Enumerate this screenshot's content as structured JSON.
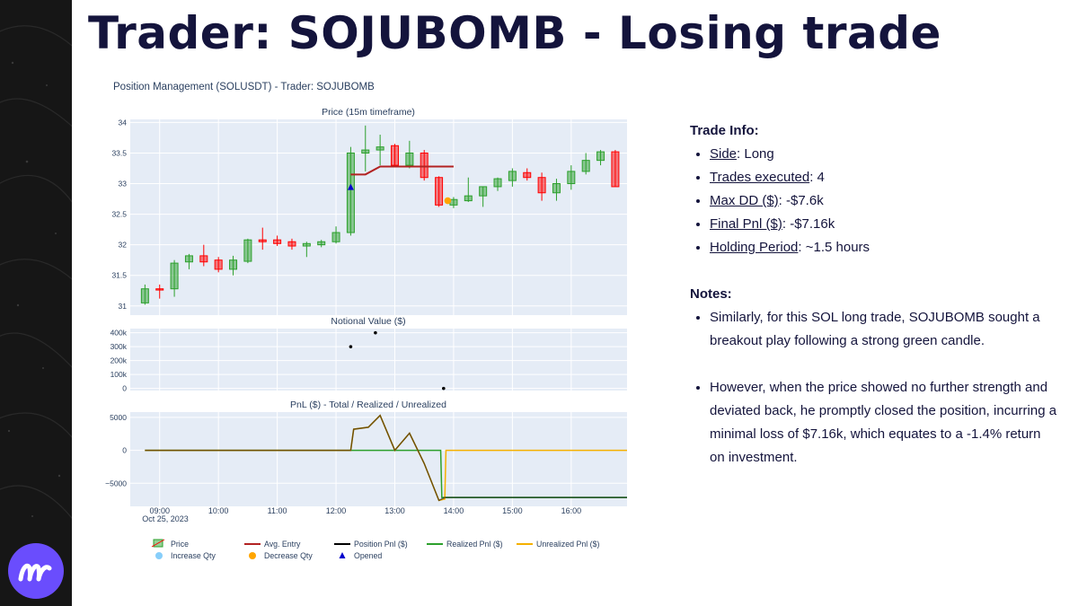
{
  "slide": {
    "title": "Trader: SOJUBOMB - Losing trade",
    "figure_title": "Position Management (SOLUSDT) - Trader: SOJUBOMB"
  },
  "colors": {
    "title": "#14143c",
    "increasing": "#2ca02c",
    "decreasing": "#ff0000",
    "avg_entry": "#b22222",
    "realized": "#2ca02c",
    "unrealized": "#f5b000",
    "plot_bg": "#e5ecf6",
    "logo": "#6a4dfd"
  },
  "trade_info": {
    "heading": "Trade Info:",
    "items": [
      {
        "label": "Side",
        "value": ": Long"
      },
      {
        "label": "Trades executed",
        "value": ": 4"
      },
      {
        "label": "Max DD ($)",
        "value": ": -$7.6k"
      },
      {
        "label": "Final Pnl ($)",
        "value": ": -$7.16k"
      },
      {
        "label": "Holding Period",
        "value": ": ~1.5 hours"
      }
    ]
  },
  "notes": {
    "heading": "Notes:",
    "items": [
      "Similarly, for this SOL long trade, SOJUBOMB sought a breakout play following a strong green candle.",
      "However, when the price showed no further strength and deviated back, he promptly closed the position, incurring a minimal loss of $7.16k, which equates to a -1.4% return on investment."
    ]
  },
  "chart_data": [
    {
      "type": "candlestick",
      "title": "Price (15m timeframe)",
      "ylim": [
        30.85,
        34.05
      ],
      "yticks": [
        31,
        31.5,
        32,
        32.5,
        33,
        33.5,
        34
      ],
      "ytick_labels": [
        "31",
        "31.5",
        "32",
        "32.5",
        "33",
        "33.5",
        "34"
      ],
      "candles": [
        {
          "t": 8.75,
          "o": 31.05,
          "h": 31.35,
          "l": 31.02,
          "c": 31.28
        },
        {
          "t": 9.0,
          "o": 31.28,
          "h": 31.35,
          "l": 31.12,
          "c": 31.26
        },
        {
          "t": 9.25,
          "o": 31.28,
          "h": 31.75,
          "l": 31.15,
          "c": 31.7
        },
        {
          "t": 9.5,
          "o": 31.72,
          "h": 31.85,
          "l": 31.6,
          "c": 31.82
        },
        {
          "t": 9.75,
          "o": 31.82,
          "h": 32.0,
          "l": 31.65,
          "c": 31.72
        },
        {
          "t": 10.0,
          "o": 31.75,
          "h": 31.8,
          "l": 31.55,
          "c": 31.6
        },
        {
          "t": 10.25,
          "o": 31.6,
          "h": 31.82,
          "l": 31.5,
          "c": 31.75
        },
        {
          "t": 10.5,
          "o": 31.73,
          "h": 32.1,
          "l": 31.7,
          "c": 32.08
        },
        {
          "t": 10.75,
          "o": 32.08,
          "h": 32.28,
          "l": 31.92,
          "c": 32.05
        },
        {
          "t": 11.0,
          "o": 32.08,
          "h": 32.15,
          "l": 31.98,
          "c": 32.02
        },
        {
          "t": 11.25,
          "o": 32.05,
          "h": 32.1,
          "l": 31.92,
          "c": 31.98
        },
        {
          "t": 11.5,
          "o": 31.98,
          "h": 32.05,
          "l": 31.8,
          "c": 32.02
        },
        {
          "t": 11.75,
          "o": 32.0,
          "h": 32.08,
          "l": 31.96,
          "c": 32.05
        },
        {
          "t": 12.0,
          "o": 32.05,
          "h": 32.3,
          "l": 32.02,
          "c": 32.2
        },
        {
          "t": 12.25,
          "o": 32.2,
          "h": 33.6,
          "l": 32.15,
          "c": 33.5
        },
        {
          "t": 12.5,
          "o": 33.5,
          "h": 33.95,
          "l": 33.2,
          "c": 33.55
        },
        {
          "t": 12.75,
          "o": 33.55,
          "h": 33.8,
          "l": 33.3,
          "c": 33.6
        },
        {
          "t": 13.0,
          "o": 33.62,
          "h": 33.65,
          "l": 33.28,
          "c": 33.3
        },
        {
          "t": 13.25,
          "o": 33.3,
          "h": 33.7,
          "l": 33.25,
          "c": 33.5
        },
        {
          "t": 13.5,
          "o": 33.5,
          "h": 33.55,
          "l": 33.05,
          "c": 33.1
        },
        {
          "t": 13.75,
          "o": 33.1,
          "h": 33.12,
          "l": 32.62,
          "c": 32.65
        },
        {
          "t": 14.0,
          "o": 32.65,
          "h": 32.78,
          "l": 32.6,
          "c": 32.74
        },
        {
          "t": 14.25,
          "o": 32.72,
          "h": 33.1,
          "l": 32.7,
          "c": 32.8
        },
        {
          "t": 14.5,
          "o": 32.8,
          "h": 32.95,
          "l": 32.62,
          "c": 32.95
        },
        {
          "t": 14.75,
          "o": 32.95,
          "h": 33.1,
          "l": 32.88,
          "c": 33.08
        },
        {
          "t": 15.0,
          "o": 33.05,
          "h": 33.25,
          "l": 32.95,
          "c": 33.2
        },
        {
          "t": 15.25,
          "o": 33.18,
          "h": 33.25,
          "l": 33.05,
          "c": 33.1
        },
        {
          "t": 15.5,
          "o": 33.1,
          "h": 33.18,
          "l": 32.72,
          "c": 32.85
        },
        {
          "t": 15.75,
          "o": 32.85,
          "h": 33.08,
          "l": 32.72,
          "c": 33.0
        },
        {
          "t": 16.0,
          "o": 33.0,
          "h": 33.3,
          "l": 32.9,
          "c": 33.2
        },
        {
          "t": 16.25,
          "o": 33.2,
          "h": 33.5,
          "l": 33.15,
          "c": 33.38
        },
        {
          "t": 16.5,
          "o": 33.38,
          "h": 33.55,
          "l": 33.3,
          "c": 33.52
        },
        {
          "t": 16.75,
          "o": 33.52,
          "h": 33.55,
          "l": 32.95,
          "c": 32.95
        }
      ],
      "avg_entry": {
        "x": [
          12.25,
          12.5,
          12.75,
          13.0,
          13.25,
          13.5,
          13.75,
          14.0
        ],
        "y": [
          33.15,
          33.15,
          33.28,
          33.28,
          33.28,
          33.28,
          33.28,
          33.28
        ]
      },
      "opened": {
        "x": [
          12.25
        ],
        "y": [
          32.94
        ]
      },
      "decrease_qty": {
        "x": [
          13.9
        ],
        "y": [
          32.72
        ]
      }
    },
    {
      "type": "scatter",
      "title": "Notional Value ($)",
      "ylim": [
        -15000,
        430000
      ],
      "yticks": [
        0,
        100000,
        200000,
        300000,
        400000
      ],
      "ytick_labels": [
        "0",
        "100k",
        "200k",
        "300k",
        "400k"
      ],
      "x": [
        12.25,
        12.67,
        13.83
      ],
      "y": [
        300000,
        400000,
        0
      ]
    },
    {
      "type": "line",
      "title": "PnL ($) - Total / Realized / Unrealized",
      "ylim": [
        -8500,
        5800
      ],
      "yticks": [
        -5000,
        0,
        5000
      ],
      "ytick_labels": [
        "−5000",
        "0",
        "5000"
      ],
      "xlim": [
        8.5,
        16.95
      ],
      "xticks": [
        9,
        10,
        11,
        12,
        13,
        14,
        15,
        16
      ],
      "xtick_labels": [
        "09:00",
        "10:00",
        "11:00",
        "12:00",
        "13:00",
        "14:00",
        "15:00",
        "16:00"
      ],
      "x_sublabel": "Oct 25, 2023",
      "series": [
        {
          "name": "Realized Pnl ($)",
          "color": "#2ca02c",
          "x": [
            8.75,
            13.78,
            13.8,
            16.95
          ],
          "y": [
            0,
            0,
            -7160,
            -7160
          ]
        },
        {
          "name": "Unrealized Pnl ($)",
          "color": "#f5b000",
          "x": [
            8.75,
            12.25,
            12.3,
            12.55,
            12.75,
            13.0,
            13.25,
            13.5,
            13.75,
            13.85,
            13.87,
            16.95
          ],
          "y": [
            0,
            0,
            3200,
            3500,
            5300,
            0,
            2600,
            -2000,
            -7600,
            -7400,
            0,
            0
          ]
        },
        {
          "name": "Position Pnl ($)",
          "color": "#000000",
          "x": [
            8.75,
            12.25,
            12.3,
            12.55,
            12.75,
            13.0,
            13.25,
            13.5,
            13.75,
            13.85,
            16.95
          ],
          "y": [
            0,
            0,
            3200,
            3500,
            5300,
            0,
            2600,
            -2000,
            -7600,
            -7160,
            -7160
          ]
        }
      ]
    }
  ],
  "legend": [
    {
      "name": "Price",
      "kind": "candle"
    },
    {
      "name": "Avg. Entry",
      "kind": "line",
      "color": "#b22222"
    },
    {
      "name": "Position Pnl ($)",
      "kind": "line",
      "color": "#000000"
    },
    {
      "name": "Realized Pnl ($)",
      "kind": "line",
      "color": "#2ca02c"
    },
    {
      "name": "Unrealized Pnl ($)",
      "kind": "line",
      "color": "#f5b000"
    },
    {
      "name": "Increase Qty",
      "kind": "dot",
      "color": "#87cefa"
    },
    {
      "name": "Decrease Qty",
      "kind": "dot",
      "color": "#ffa500"
    },
    {
      "name": "Opened",
      "kind": "triangle",
      "color": "#0000cd"
    }
  ]
}
